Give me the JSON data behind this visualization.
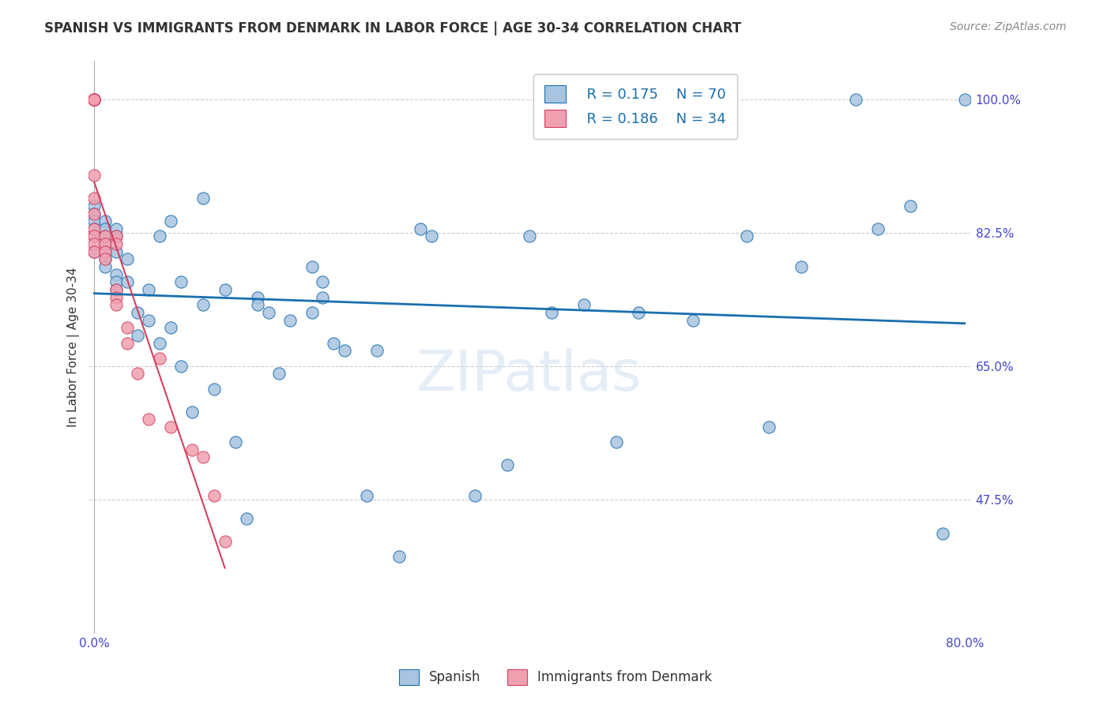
{
  "title": "SPANISH VS IMMIGRANTS FROM DENMARK IN LABOR FORCE | AGE 30-34 CORRELATION CHART",
  "source": "Source: ZipAtlas.com",
  "xlabel": "",
  "ylabel": "In Labor Force | Age 30-34",
  "xlim": [
    0.0,
    0.8
  ],
  "ylim": [
    0.3,
    1.05
  ],
  "xticks": [
    0.0,
    0.1,
    0.2,
    0.3,
    0.4,
    0.5,
    0.6,
    0.7,
    0.8
  ],
  "yticks": [
    0.475,
    0.65,
    0.825,
    1.0
  ],
  "yticklabels": [
    "47.5%",
    "65.0%",
    "82.5%",
    "100.0%"
  ],
  "hlines": [
    0.475,
    0.65,
    0.825,
    1.0
  ],
  "blue_r": 0.175,
  "blue_n": 70,
  "pink_r": 0.186,
  "pink_n": 34,
  "blue_color": "#a8c4e0",
  "pink_color": "#f0a0b0",
  "line_blue": "#1a6faf",
  "line_pink": "#d44060",
  "watermark": "ZIPatlas",
  "blue_x": [
    0.0,
    0.0,
    0.0,
    0.0,
    0.0,
    0.0,
    0.01,
    0.01,
    0.01,
    0.01,
    0.01,
    0.01,
    0.01,
    0.02,
    0.02,
    0.02,
    0.02,
    0.02,
    0.02,
    0.03,
    0.03,
    0.04,
    0.04,
    0.05,
    0.05,
    0.06,
    0.06,
    0.07,
    0.07,
    0.08,
    0.08,
    0.09,
    0.1,
    0.1,
    0.11,
    0.12,
    0.13,
    0.14,
    0.15,
    0.15,
    0.16,
    0.17,
    0.18,
    0.2,
    0.2,
    0.21,
    0.21,
    0.22,
    0.23,
    0.25,
    0.26,
    0.28,
    0.3,
    0.31,
    0.35,
    0.38,
    0.4,
    0.42,
    0.45,
    0.48,
    0.5,
    0.55,
    0.6,
    0.62,
    0.65,
    0.7,
    0.72,
    0.75,
    0.78,
    0.8
  ],
  "blue_y": [
    0.86,
    0.85,
    0.84,
    0.83,
    0.82,
    0.8,
    0.84,
    0.83,
    0.82,
    0.81,
    0.8,
    0.79,
    0.78,
    0.83,
    0.82,
    0.8,
    0.77,
    0.76,
    0.75,
    0.79,
    0.76,
    0.72,
    0.69,
    0.75,
    0.71,
    0.82,
    0.68,
    0.84,
    0.7,
    0.76,
    0.65,
    0.59,
    0.87,
    0.73,
    0.62,
    0.75,
    0.55,
    0.45,
    0.74,
    0.73,
    0.72,
    0.64,
    0.71,
    0.78,
    0.72,
    0.74,
    0.76,
    0.68,
    0.67,
    0.48,
    0.67,
    0.4,
    0.83,
    0.82,
    0.48,
    0.52,
    0.82,
    0.72,
    0.73,
    0.55,
    0.72,
    0.71,
    0.82,
    0.57,
    0.78,
    1.0,
    0.83,
    0.86,
    0.43,
    1.0
  ],
  "pink_x": [
    0.0,
    0.0,
    0.0,
    0.0,
    0.0,
    0.0,
    0.0,
    0.0,
    0.0,
    0.0,
    0.0,
    0.0,
    0.0,
    0.0,
    0.0,
    0.01,
    0.01,
    0.01,
    0.01,
    0.02,
    0.02,
    0.02,
    0.02,
    0.02,
    0.03,
    0.03,
    0.04,
    0.05,
    0.06,
    0.07,
    0.09,
    0.1,
    0.11,
    0.12
  ],
  "pink_y": [
    1.0,
    1.0,
    1.0,
    1.0,
    1.0,
    1.0,
    1.0,
    1.0,
    0.9,
    0.87,
    0.85,
    0.83,
    0.82,
    0.81,
    0.8,
    0.82,
    0.81,
    0.8,
    0.79,
    0.82,
    0.81,
    0.75,
    0.74,
    0.73,
    0.7,
    0.68,
    0.64,
    0.58,
    0.66,
    0.57,
    0.54,
    0.53,
    0.48,
    0.42
  ]
}
